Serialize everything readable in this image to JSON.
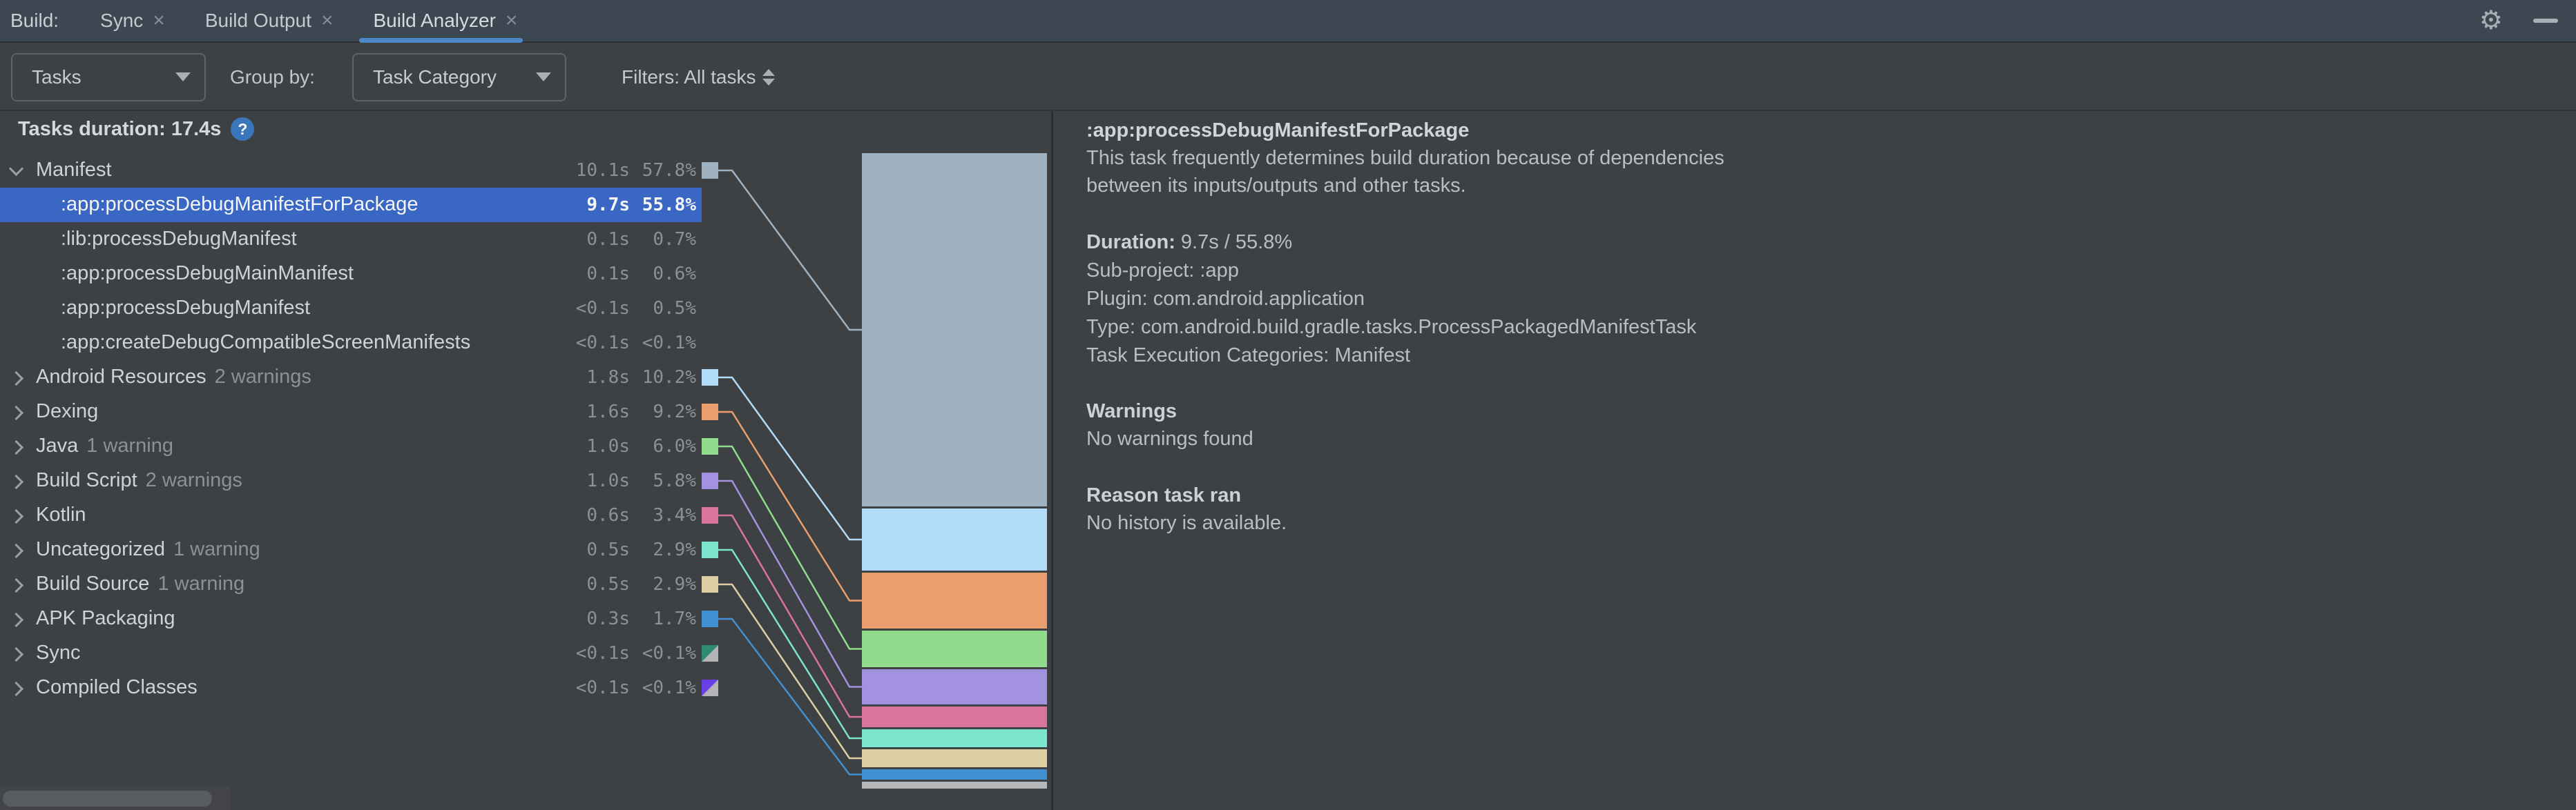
{
  "tab_bar": {
    "prefix_label": "Build:",
    "close_glyph": "×",
    "tabs": [
      {
        "label": "Sync",
        "active": false
      },
      {
        "label": "Build Output",
        "active": false
      },
      {
        "label": "Build Analyzer",
        "active": true
      }
    ]
  },
  "toolbar": {
    "view_value": "Tasks",
    "group_by_label": "Group by:",
    "group_value": "Task Category",
    "filters_label": "Filters: All tasks"
  },
  "left_panel": {
    "header_label": "Tasks duration: 17.4s",
    "help_glyph": "?",
    "rows": [
      {
        "name": "Manifest",
        "duration": "10.1s",
        "percent": "57.8%",
        "level": 0,
        "expanded": true,
        "chip": "manifest"
      },
      {
        "name": ":app:processDebugManifestForPackage",
        "duration": "9.7s",
        "percent": "55.8%",
        "level": 1,
        "selected": true
      },
      {
        "name": ":lib:processDebugManifest",
        "duration": "0.1s",
        "percent": "0.7%",
        "level": 1
      },
      {
        "name": ":app:processDebugMainManifest",
        "duration": "0.1s",
        "percent": "0.6%",
        "level": 1
      },
      {
        "name": ":app:processDebugManifest",
        "duration": "<0.1s",
        "percent": "0.5%",
        "level": 1
      },
      {
        "name": ":app:createDebugCompatibleScreenManifests",
        "duration": "<0.1s",
        "percent": "<0.1%",
        "level": 1
      },
      {
        "name": "Android Resources",
        "suffix": "2 warnings",
        "duration": "1.8s",
        "percent": "10.2%",
        "level": 0,
        "chip": "android_resources"
      },
      {
        "name": "Dexing",
        "duration": "1.6s",
        "percent": "9.2%",
        "level": 0,
        "chip": "dexing"
      },
      {
        "name": "Java",
        "suffix": "1 warning",
        "duration": "1.0s",
        "percent": "6.0%",
        "level": 0,
        "chip": "java"
      },
      {
        "name": "Build Script",
        "suffix": "2 warnings",
        "duration": "1.0s",
        "percent": "5.8%",
        "level": 0,
        "chip": "build_script"
      },
      {
        "name": "Kotlin",
        "duration": "0.6s",
        "percent": "3.4%",
        "level": 0,
        "chip": "kotlin"
      },
      {
        "name": "Uncategorized",
        "suffix": "1 warning",
        "duration": "0.5s",
        "percent": "2.9%",
        "level": 0,
        "chip": "uncategorized"
      },
      {
        "name": "Build Source",
        "suffix": "1 warning",
        "duration": "0.5s",
        "percent": "2.9%",
        "level": 0,
        "chip": "build_source"
      },
      {
        "name": "APK Packaging",
        "duration": "0.3s",
        "percent": "1.7%",
        "level": 0,
        "chip": "apk_packaging"
      },
      {
        "name": "Sync",
        "duration": "<0.1s",
        "percent": "<0.1%",
        "level": 0,
        "chip": "sync"
      },
      {
        "name": "Compiled Classes",
        "duration": "<0.1s",
        "percent": "<0.1%",
        "level": 0,
        "chip": "compiled_classes"
      }
    ]
  },
  "chart_data": {
    "type": "bar",
    "stacked": true,
    "title": "Tasks duration: 17.4s",
    "total_duration_s": 17.4,
    "legend_position": "left-tree",
    "segments": [
      {
        "key": "manifest",
        "name": "Manifest",
        "duration_s": 10.1,
        "pct": 57.8,
        "color": "#9fb2c2"
      },
      {
        "key": "android_resources",
        "name": "Android Resources",
        "duration_s": 1.8,
        "pct": 10.2,
        "color": "#b0dcfa"
      },
      {
        "key": "dexing",
        "name": "Dexing",
        "duration_s": 1.6,
        "pct": 9.2,
        "color": "#eb9e6d"
      },
      {
        "key": "java",
        "name": "Java",
        "duration_s": 1.0,
        "pct": 6.0,
        "color": "#90dc8c"
      },
      {
        "key": "build_script",
        "name": "Build Script",
        "duration_s": 1.0,
        "pct": 5.8,
        "color": "#a392e0"
      },
      {
        "key": "kotlin",
        "name": "Kotlin",
        "duration_s": 0.6,
        "pct": 3.4,
        "color": "#d9749b"
      },
      {
        "key": "uncategorized",
        "name": "Uncategorized",
        "duration_s": 0.5,
        "pct": 2.9,
        "color": "#7ce5cd"
      },
      {
        "key": "build_source",
        "name": "Build Source",
        "duration_s": 0.5,
        "pct": 2.9,
        "color": "#dccfa3"
      },
      {
        "key": "apk_packaging",
        "name": "APK Packaging",
        "duration_s": 0.3,
        "pct": 1.7,
        "color": "#4090d2"
      },
      {
        "key": "remainder",
        "name": "remainder",
        "pct": 1.1,
        "color": "#b5b7b8"
      }
    ],
    "legend_chips": {
      "sync": [
        "#2e8a74",
        "#b2b4b6"
      ],
      "compiled_classes": [
        "#6b3fe8",
        "#b2b4b6"
      ]
    }
  },
  "details": {
    "title": ":app:processDebugManifestForPackage",
    "description_lines": [
      "This task frequently determines build duration because of dependencies",
      "between its inputs/outputs and other tasks."
    ],
    "duration_label": "Duration:",
    "duration_value": " 9.7s / 55.8%",
    "fields": [
      "Sub-project: :app",
      "Plugin: com.android.application",
      "Type: com.android.build.gradle.tasks.ProcessPackagedManifestTask",
      "Task Execution Categories: Manifest"
    ],
    "warnings_heading": "Warnings",
    "warnings_text": "No warnings found",
    "reason_heading": "Reason task ran",
    "reason_text": "No history is available."
  }
}
